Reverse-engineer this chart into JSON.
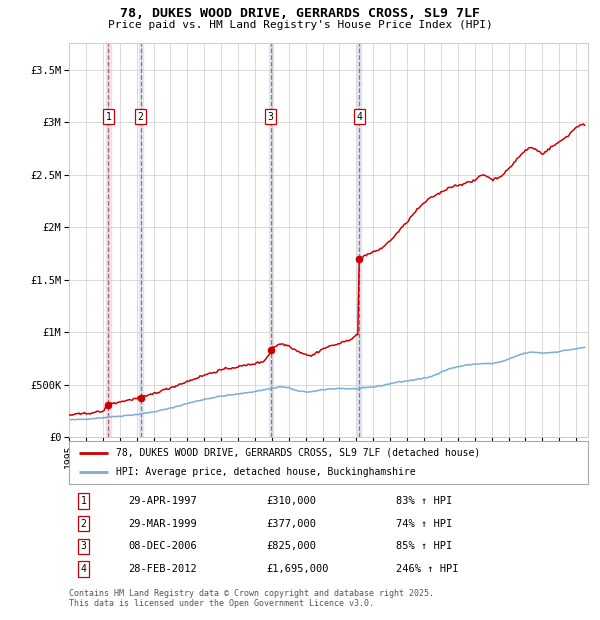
{
  "title": "78, DUKES WOOD DRIVE, GERRARDS CROSS, SL9 7LF",
  "subtitle": "Price paid vs. HM Land Registry's House Price Index (HPI)",
  "legend_line1": "78, DUKES WOOD DRIVE, GERRARDS CROSS, SL9 7LF (detached house)",
  "legend_line2": "HPI: Average price, detached house, Buckinghamshire",
  "footer": "Contains HM Land Registry data © Crown copyright and database right 2025.\nThis data is licensed under the Open Government Licence v3.0.",
  "sale_dates_decimal": [
    1997.327,
    1999.244,
    2006.936,
    2012.163
  ],
  "sale_prices": [
    310000,
    377000,
    825000,
    1695000
  ],
  "sale_labels": [
    "1",
    "2",
    "3",
    "4"
  ],
  "table_rows": [
    [
      "1",
      "29-APR-1997",
      "£310,000",
      "83% ↑ HPI"
    ],
    [
      "2",
      "29-MAR-1999",
      "£377,000",
      "74% ↑ HPI"
    ],
    [
      "3",
      "08-DEC-2006",
      "£825,000",
      "85% ↑ HPI"
    ],
    [
      "4",
      "28-FEB-2012",
      "£1,695,000",
      "246% ↑ HPI"
    ]
  ],
  "hpi_color": "#7aaed4",
  "price_color": "#cc0000",
  "highlight_color": "#daeaf5",
  "dashed_line_color": "#ee3333",
  "grid_color": "#cccccc",
  "ylim": [
    0,
    3750000
  ],
  "yticks": [
    0,
    500000,
    1000000,
    1500000,
    2000000,
    2500000,
    3000000,
    3500000
  ],
  "ytick_labels": [
    "£0",
    "£500K",
    "£1M",
    "£1.5M",
    "£2M",
    "£2.5M",
    "£3M",
    "£3.5M"
  ],
  "xlim_start": 1995.0,
  "xlim_end": 2025.7,
  "background_color": "#ffffff",
  "hpi_anchors": [
    [
      1995.0,
      163000
    ],
    [
      1996.0,
      172000
    ],
    [
      1997.0,
      185000
    ],
    [
      1998.0,
      200000
    ],
    [
      1999.0,
      215000
    ],
    [
      2000.0,
      240000
    ],
    [
      2001.0,
      275000
    ],
    [
      2002.0,
      320000
    ],
    [
      2003.0,
      360000
    ],
    [
      2004.0,
      390000
    ],
    [
      2005.0,
      410000
    ],
    [
      2006.0,
      435000
    ],
    [
      2007.0,
      465000
    ],
    [
      2007.5,
      480000
    ],
    [
      2008.0,
      470000
    ],
    [
      2008.5,
      440000
    ],
    [
      2009.0,
      430000
    ],
    [
      2009.5,
      435000
    ],
    [
      2010.0,
      450000
    ],
    [
      2010.5,
      460000
    ],
    [
      2011.0,
      465000
    ],
    [
      2011.5,
      460000
    ],
    [
      2012.0,
      460000
    ],
    [
      2012.5,
      468000
    ],
    [
      2013.0,
      478000
    ],
    [
      2013.5,
      490000
    ],
    [
      2014.0,
      510000
    ],
    [
      2014.5,
      525000
    ],
    [
      2015.0,
      535000
    ],
    [
      2015.5,
      548000
    ],
    [
      2016.0,
      560000
    ],
    [
      2016.5,
      580000
    ],
    [
      2017.0,
      620000
    ],
    [
      2017.5,
      650000
    ],
    [
      2018.0,
      670000
    ],
    [
      2018.5,
      685000
    ],
    [
      2019.0,
      695000
    ],
    [
      2019.5,
      700000
    ],
    [
      2020.0,
      700000
    ],
    [
      2020.5,
      715000
    ],
    [
      2021.0,
      740000
    ],
    [
      2021.5,
      775000
    ],
    [
      2022.0,
      800000
    ],
    [
      2022.5,
      810000
    ],
    [
      2023.0,
      800000
    ],
    [
      2023.5,
      805000
    ],
    [
      2024.0,
      815000
    ],
    [
      2024.5,
      830000
    ],
    [
      2025.0,
      840000
    ],
    [
      2025.5,
      855000
    ]
  ],
  "price_anchors": [
    [
      1995.0,
      210000
    ],
    [
      1996.0,
      225000
    ],
    [
      1997.0,
      245000
    ],
    [
      1997.327,
      310000
    ],
    [
      1997.6,
      320000
    ],
    [
      1998.0,
      335000
    ],
    [
      1999.244,
      377000
    ],
    [
      1999.5,
      385000
    ],
    [
      2000.0,
      415000
    ],
    [
      2001.0,
      470000
    ],
    [
      2002.0,
      530000
    ],
    [
      2003.0,
      590000
    ],
    [
      2004.0,
      640000
    ],
    [
      2005.0,
      670000
    ],
    [
      2006.0,
      700000
    ],
    [
      2006.5,
      720000
    ],
    [
      2006.9,
      800000
    ],
    [
      2006.936,
      825000
    ],
    [
      2007.0,
      855000
    ],
    [
      2007.3,
      870000
    ],
    [
      2007.5,
      890000
    ],
    [
      2008.0,
      870000
    ],
    [
      2008.5,
      820000
    ],
    [
      2009.0,
      790000
    ],
    [
      2009.3,
      770000
    ],
    [
      2009.5,
      790000
    ],
    [
      2010.0,
      840000
    ],
    [
      2010.5,
      870000
    ],
    [
      2011.0,
      890000
    ],
    [
      2011.5,
      920000
    ],
    [
      2011.9,
      960000
    ],
    [
      2012.0,
      970000
    ],
    [
      2012.16,
      975000
    ],
    [
      2012.163,
      1695000
    ],
    [
      2012.3,
      1710000
    ],
    [
      2012.5,
      1730000
    ],
    [
      2013.0,
      1760000
    ],
    [
      2013.5,
      1800000
    ],
    [
      2014.0,
      1870000
    ],
    [
      2014.5,
      1960000
    ],
    [
      2015.0,
      2050000
    ],
    [
      2015.5,
      2150000
    ],
    [
      2016.0,
      2230000
    ],
    [
      2016.5,
      2290000
    ],
    [
      2017.0,
      2330000
    ],
    [
      2017.5,
      2380000
    ],
    [
      2018.0,
      2400000
    ],
    [
      2018.5,
      2420000
    ],
    [
      2019.0,
      2440000
    ],
    [
      2019.3,
      2490000
    ],
    [
      2019.5,
      2500000
    ],
    [
      2019.8,
      2480000
    ],
    [
      2020.0,
      2450000
    ],
    [
      2020.5,
      2480000
    ],
    [
      2021.0,
      2550000
    ],
    [
      2021.5,
      2650000
    ],
    [
      2022.0,
      2730000
    ],
    [
      2022.3,
      2760000
    ],
    [
      2022.5,
      2750000
    ],
    [
      2022.8,
      2720000
    ],
    [
      2023.0,
      2700000
    ],
    [
      2023.3,
      2730000
    ],
    [
      2023.5,
      2760000
    ],
    [
      2024.0,
      2810000
    ],
    [
      2024.5,
      2870000
    ],
    [
      2025.0,
      2950000
    ],
    [
      2025.3,
      2980000
    ],
    [
      2025.5,
      2980000
    ]
  ]
}
